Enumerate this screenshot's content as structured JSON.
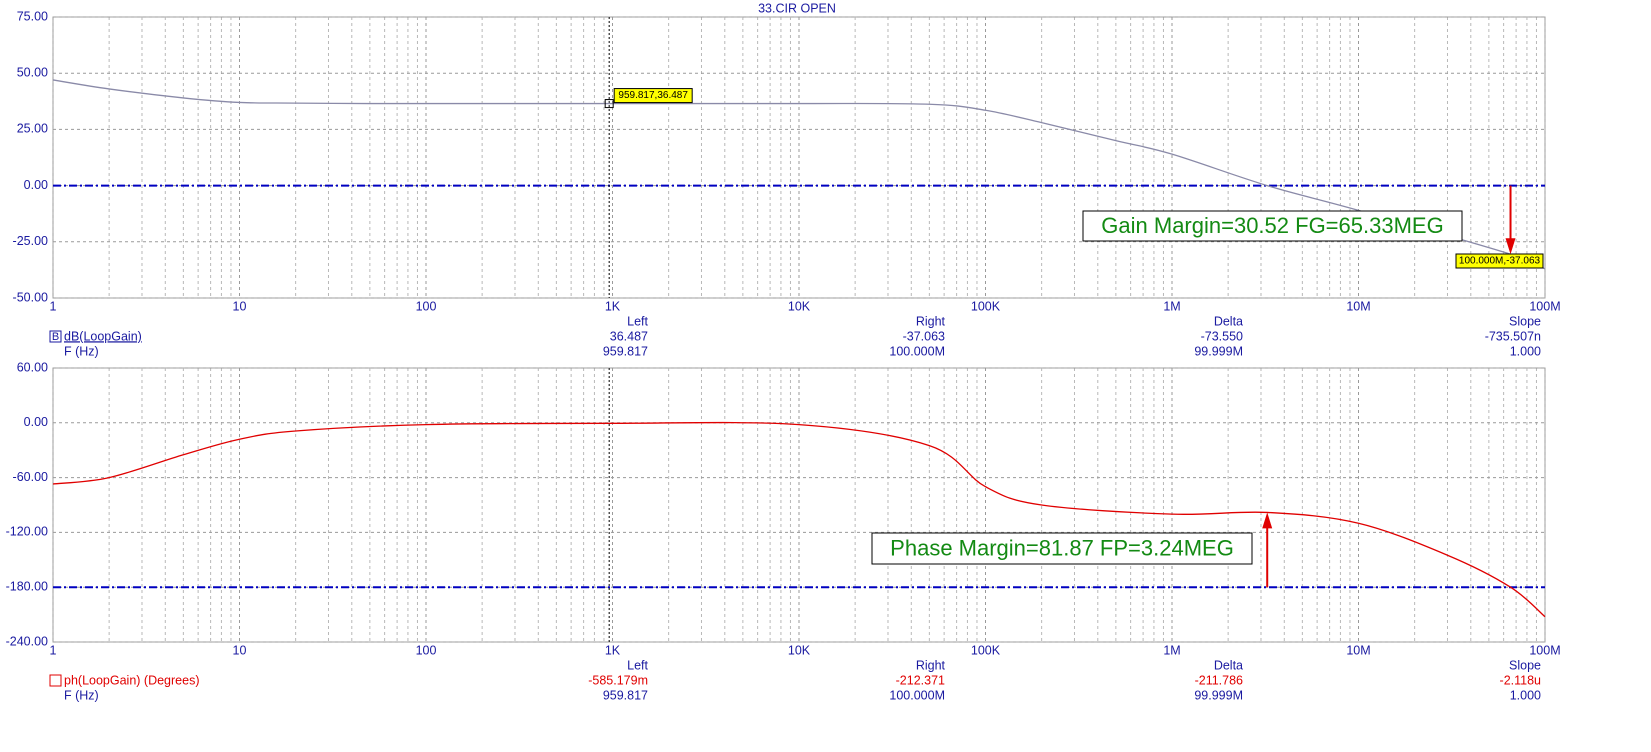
{
  "chart_data": [
    {
      "type": "line",
      "title": "33.CIR OPEN",
      "x_label": "F (Hz)",
      "xscale": "log",
      "grid": true,
      "x": [
        1,
        2,
        5,
        10,
        20,
        50,
        100,
        959.817,
        10000,
        50000,
        100000,
        200000,
        500000,
        1000000,
        3240000,
        10000000,
        65330000,
        100000000
      ],
      "series": [
        {
          "name": "dB(LoopGain)",
          "marker_text": "B",
          "color": "#8a8aa8",
          "values": [
            47,
            43,
            39,
            37,
            36.7,
            36.5,
            36.5,
            36.487,
            36.5,
            36.2,
            33.5,
            28,
            20,
            14,
            0,
            -11,
            -30.52,
            -37.063
          ]
        }
      ],
      "xlim": [
        1,
        100000000
      ],
      "xticks": [
        1,
        10,
        100,
        {
          "value": 1000,
          "label": "1K"
        },
        {
          "value": 10000,
          "label": "10K"
        },
        {
          "value": 100000,
          "label": "100K"
        },
        {
          "value": 1000000,
          "label": "1M"
        },
        {
          "value": 10000000,
          "label": "10M"
        },
        {
          "value": 100000000,
          "label": "100M"
        }
      ],
      "ylim": [
        -50,
        75
      ],
      "yticks": [
        {
          "value": 75,
          "label": "75.00"
        },
        {
          "value": 50,
          "label": "50.00"
        },
        {
          "value": 25,
          "label": "25.00"
        },
        {
          "value": 0,
          "label": "0.00"
        },
        {
          "value": -25,
          "label": "-25.00"
        },
        {
          "value": -50,
          "label": "-50.00"
        }
      ],
      "reference_line": {
        "value": 0,
        "color": "#0000c0"
      },
      "cursor": {
        "x": 959.817,
        "y": 36.487,
        "label": "959.817,36.487"
      },
      "cursor2": {
        "x": 100000000,
        "y": -37.063,
        "label": "100.000M,-37.063"
      },
      "arrow": {
        "x": 65330000,
        "from": 0,
        "to": -30.52,
        "color": "#e00000"
      },
      "annotation": "Gain Margin=30.52 FG=65.33MEG",
      "readout": {
        "headers": [
          "Left",
          "Right",
          "Delta",
          "Slope"
        ],
        "rows": [
          [
            "36.487",
            "-37.063",
            "-73.550",
            "-735.507n"
          ],
          [
            "959.817",
            "100.000M",
            "99.999M",
            "1.000"
          ]
        ]
      }
    },
    {
      "type": "line",
      "x_label": "F (Hz)",
      "xscale": "log",
      "grid": true,
      "x": [
        1,
        2,
        5,
        10,
        20,
        100,
        959.817,
        10000,
        50000,
        100000,
        200000,
        1000000,
        3240000,
        10000000,
        30000000,
        65330000,
        100000000
      ],
      "series": [
        {
          "name": "ph(LoopGain) (Degrees)",
          "color": "#e00000",
          "values": [
            -67,
            -60,
            -35,
            -18,
            -9,
            -2,
            -0.585,
            -2,
            -25,
            -70,
            -90,
            -100,
            -98.13,
            -110,
            -145,
            -180,
            -212.371
          ]
        }
      ],
      "xlim": [
        1,
        100000000
      ],
      "xticks": [
        1,
        10,
        100,
        {
          "value": 1000,
          "label": "1K"
        },
        {
          "value": 10000,
          "label": "10K"
        },
        {
          "value": 100000,
          "label": "100K"
        },
        {
          "value": 1000000,
          "label": "1M"
        },
        {
          "value": 10000000,
          "label": "10M"
        },
        {
          "value": 100000000,
          "label": "100M"
        }
      ],
      "ylim": [
        -240,
        60
      ],
      "yticks": [
        {
          "value": 60,
          "label": "60.00"
        },
        {
          "value": 0,
          "label": "0.00"
        },
        {
          "value": -60,
          "label": "-60.00"
        },
        {
          "value": -120,
          "label": "-120.00"
        },
        {
          "value": -180,
          "label": "-180.00"
        },
        {
          "value": -240,
          "label": "-240.00"
        }
      ],
      "reference_line": {
        "value": -180,
        "color": "#0000c0"
      },
      "cursor": {
        "x": 959.817
      },
      "arrow": {
        "x": 3240000,
        "from": -180,
        "to": -98.13,
        "color": "#e00000"
      },
      "annotation": "Phase Margin=81.87 FP=3.24MEG",
      "readout": {
        "headers": [
          "Left",
          "Right",
          "Delta",
          "Slope"
        ],
        "rows": [
          [
            "-585.179m",
            "-212.371",
            "-211.786",
            "-2.118u"
          ],
          [
            "959.817",
            "100.000M",
            "99.999M",
            "1.000"
          ]
        ]
      }
    }
  ]
}
